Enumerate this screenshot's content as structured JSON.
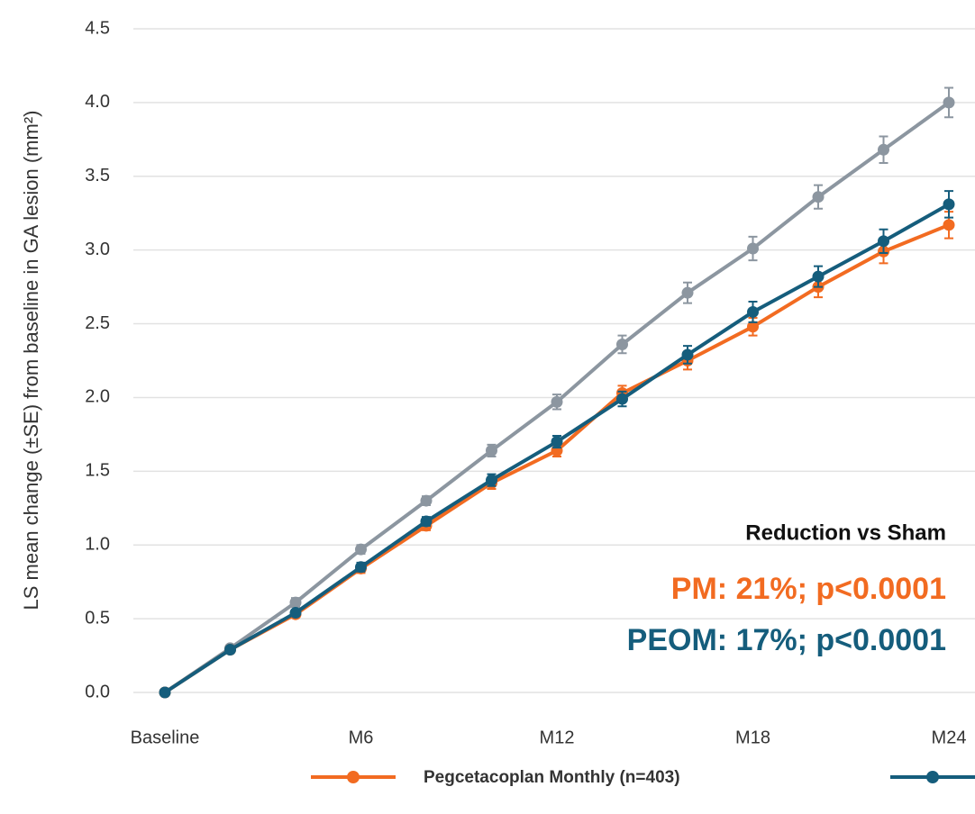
{
  "chart_data": {
    "type": "line",
    "y_label": "LS mean change (±SE) from baseline in GA lesion (mm²)",
    "categories": [
      "Baseline",
      null,
      null,
      "M6",
      null,
      null,
      "M12",
      null,
      null,
      "M18",
      null,
      null,
      "M24"
    ],
    "series": [
      {
        "color": "#8c96a0",
        "values": [
          0,
          0.3,
          0.61,
          0.97,
          1.3,
          1.64,
          1.97,
          2.36,
          2.71,
          3.01,
          3.36,
          3.68,
          4.0
        ],
        "errors": [
          0,
          0.02,
          0.03,
          0.03,
          0.03,
          0.04,
          0.05,
          0.06,
          0.07,
          0.08,
          0.08,
          0.09,
          0.1
        ]
      },
      {
        "name": "Pegcetacoplan Monthly (n=403)",
        "color": "#f26b21",
        "values": [
          0,
          0.29,
          0.53,
          0.84,
          1.13,
          1.42,
          1.64,
          2.03,
          2.25,
          2.48,
          2.75,
          2.99,
          3.17
        ],
        "errors": [
          0,
          0.02,
          0.02,
          0.03,
          0.03,
          0.04,
          0.04,
          0.05,
          0.06,
          0.06,
          0.07,
          0.08,
          0.09
        ]
      },
      {
        "color": "#155d7c",
        "values": [
          0,
          0.29,
          0.54,
          0.85,
          1.16,
          1.44,
          1.7,
          1.99,
          2.29,
          2.58,
          2.82,
          3.06,
          3.31
        ],
        "errors": [
          0,
          0.02,
          0.02,
          0.03,
          0.03,
          0.04,
          0.04,
          0.05,
          0.06,
          0.07,
          0.07,
          0.08,
          0.09
        ]
      }
    ],
    "ylim": [
      0,
      4.5
    ],
    "yticks": [
      {
        "value": 0,
        "label": "0.0"
      },
      0.5,
      {
        "value": 1,
        "label": "1.0"
      },
      1.5,
      {
        "value": 2,
        "label": "2.0"
      },
      2.5,
      {
        "value": 3,
        "label": "3.0"
      },
      3.5,
      {
        "value": 4,
        "label": "4.0"
      },
      4.5
    ],
    "grid": true,
    "annotations": [
      {
        "text": "Reduction vs Sham",
        "color": "#111111"
      },
      {
        "text": "PM:  21%; p<0.0001",
        "color": "#f26b21"
      },
      {
        "text": "PEOM: 17%; p<0.0001",
        "color": "#155d7c"
      }
    ]
  }
}
